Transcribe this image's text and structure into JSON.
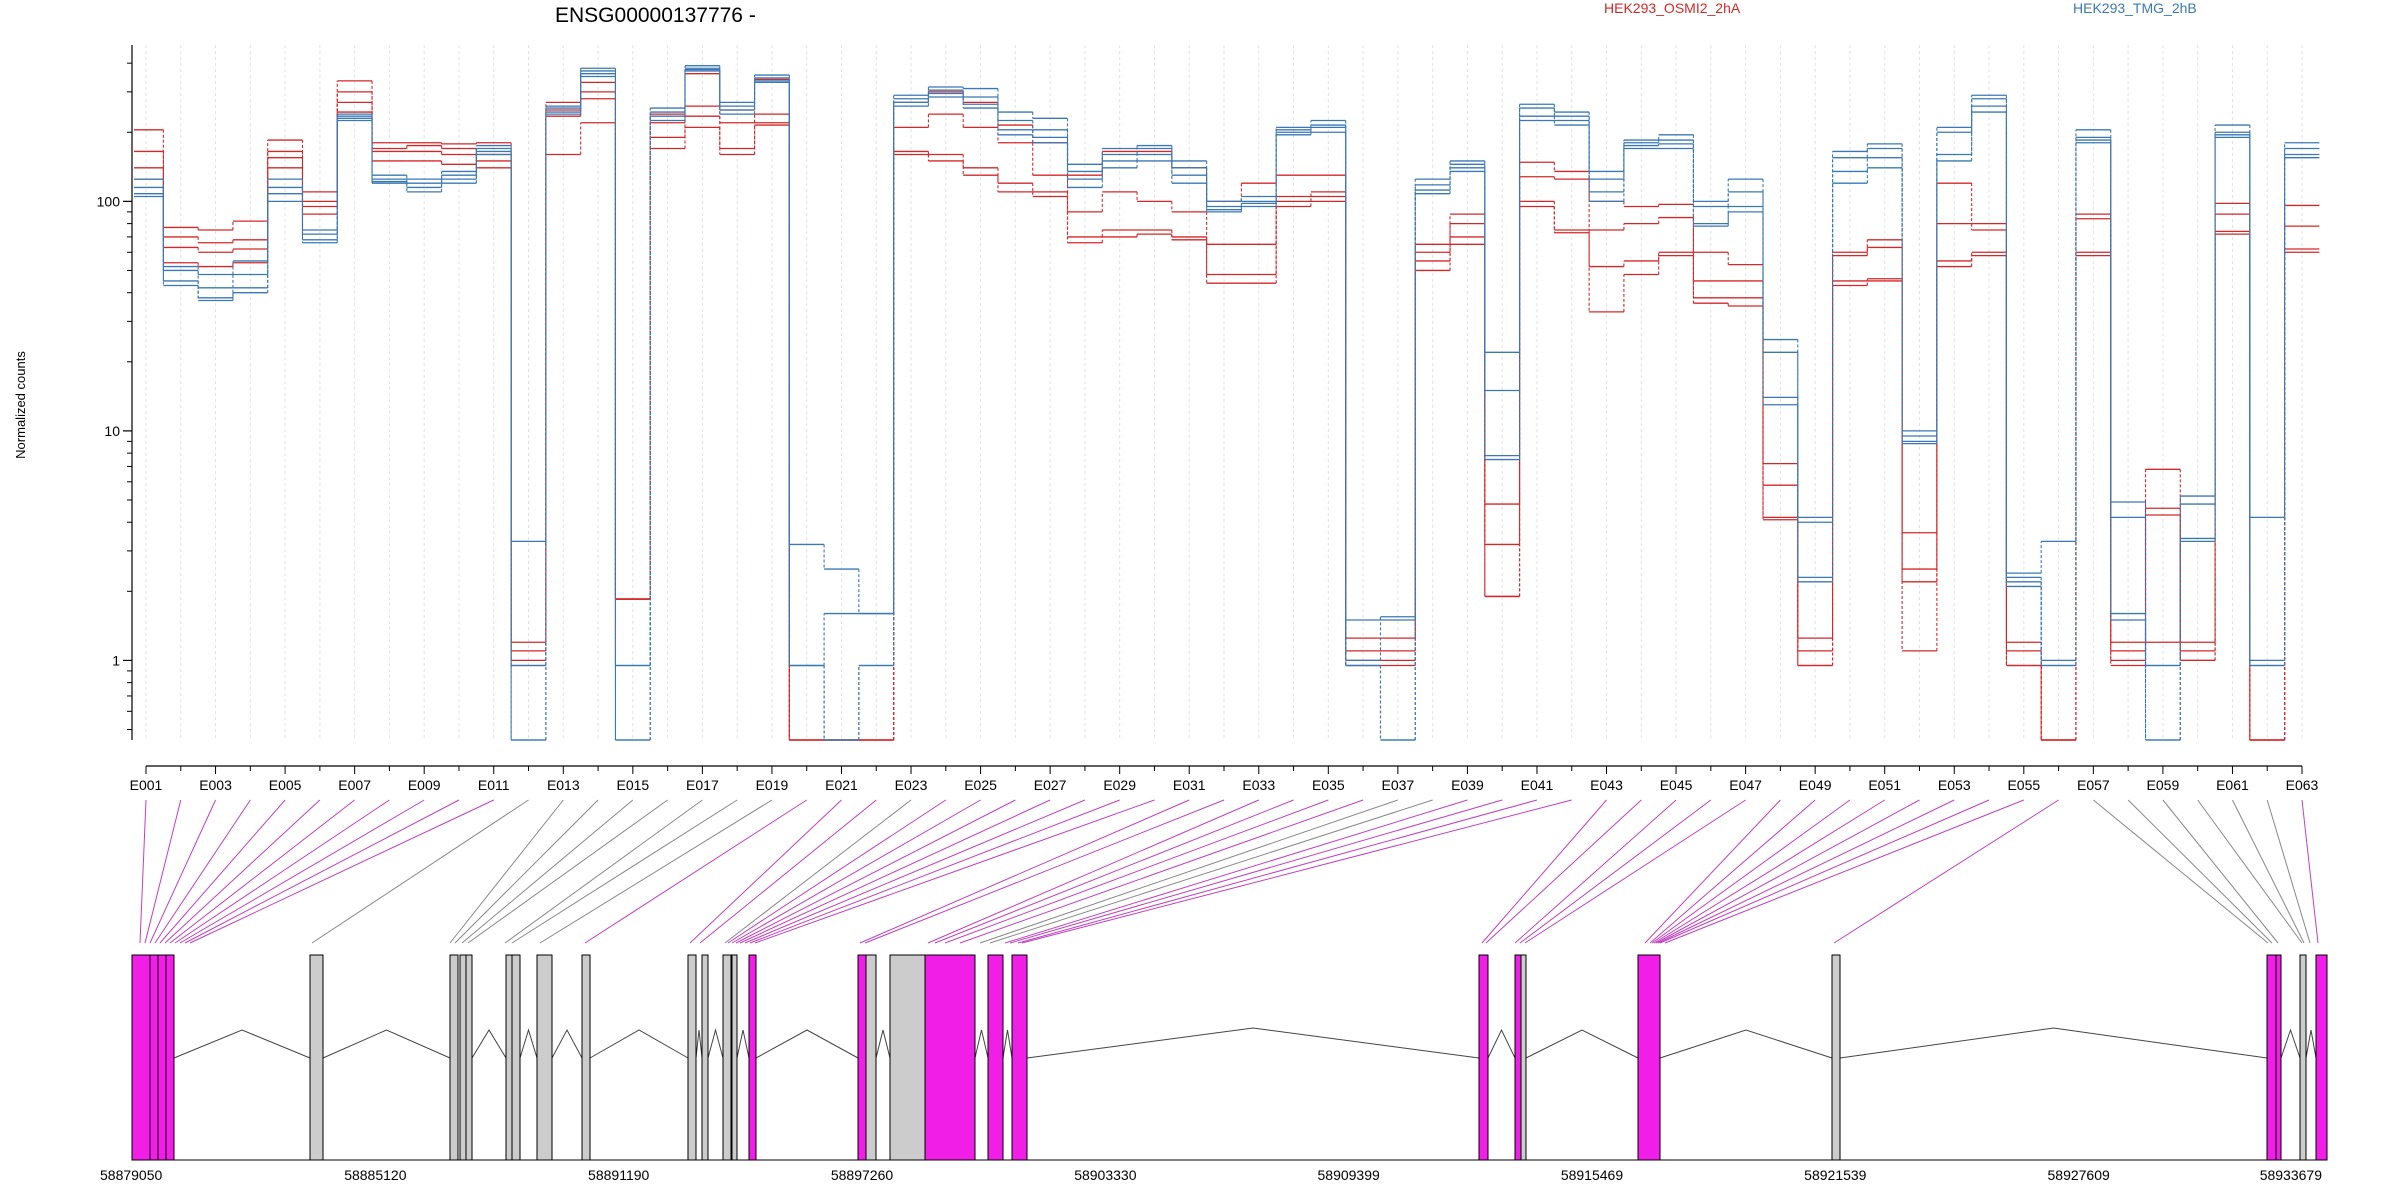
{
  "chart_data": {
    "type": "line",
    "title": "ENSG00000137776 -",
    "ylabel": "Normalized counts",
    "xlabel": "",
    "yscale": "log",
    "ylim": [
      0.45,
      480
    ],
    "y_ticks": [
      1,
      10,
      100
    ],
    "grid": "vertical",
    "legend": {
      "placement": "top-right",
      "entries": [
        "HEK293_OSMI2_2hA",
        "HEK293_TMG_2hB"
      ]
    },
    "categories": [
      "E001",
      "E002",
      "E003",
      "E004",
      "E005",
      "E006",
      "E007",
      "E008",
      "E009",
      "E010",
      "E011",
      "E012",
      "E013",
      "E014",
      "E015",
      "E016",
      "E017",
      "E018",
      "E019",
      "E020",
      "E021",
      "E022",
      "E023",
      "E024",
      "E025",
      "E026",
      "E027",
      "E028",
      "E029",
      "E030",
      "E031",
      "E032",
      "E033",
      "E034",
      "E035",
      "E036",
      "E037",
      "E038",
      "E039",
      "E040",
      "E041",
      "E042",
      "E043",
      "E044",
      "E045",
      "E046",
      "E047",
      "E048",
      "E049",
      "E050",
      "E051",
      "E052",
      "E053",
      "E054",
      "E055",
      "E056",
      "E057",
      "E058",
      "E059",
      "E060",
      "E061",
      "E062",
      "E063"
    ],
    "x_tick_labels": [
      "E001",
      "E003",
      "E005",
      "E007",
      "E009",
      "E011",
      "E013",
      "E015",
      "E017",
      "E019",
      "E021",
      "E023",
      "E025",
      "E027",
      "E029",
      "E031",
      "E033",
      "E035",
      "E037",
      "E039",
      "E041",
      "E043",
      "E045",
      "E047",
      "E049",
      "E051",
      "E053",
      "E055",
      "E057",
      "E059",
      "E061",
      "E063"
    ],
    "series": [
      {
        "name": "HEK293_OSMI2_2hA",
        "color": "#d62728",
        "values": [
          205,
          77,
          75,
          82,
          185,
          110,
          335,
          180,
          180,
          178,
          180,
          1.2,
          270,
          330,
          1.85,
          240,
          360,
          250,
          340,
          0.45,
          0.45,
          0.45,
          270,
          300,
          270,
          215,
          180,
          130,
          165,
          165,
          140,
          100,
          120,
          130,
          130,
          1.25,
          1.25,
          65,
          88,
          3.2,
          148,
          135,
          100,
          95,
          97,
          60,
          53,
          7.2,
          1.25,
          60,
          68,
          3.6,
          120,
          80,
          1.2,
          0.45,
          88,
          1.2,
          6.8,
          1.2,
          98,
          0.45,
          96
        ]
      },
      {
        "name": "HEK293_OSMI2_2hA",
        "color": "#d62728",
        "values": [
          165,
          70,
          66,
          68,
          165,
          100,
          300,
          170,
          175,
          170,
          160,
          1.1,
          250,
          300,
          1.85,
          220,
          260,
          220,
          240,
          0.45,
          0.45,
          0.45,
          210,
          240,
          210,
          180,
          130,
          90,
          110,
          100,
          90,
          65,
          65,
          105,
          110,
          1.1,
          1.1,
          60,
          80,
          4.8,
          128,
          125,
          75,
          80,
          85,
          45,
          45,
          5.8,
          1.1,
          58,
          63,
          2.5,
          80,
          75,
          1.1,
          0.45,
          84,
          1.1,
          4.6,
          1.1,
          88,
          0.45,
          78
        ]
      },
      {
        "name": "HEK293_OSMI2_2hA",
        "color": "#d62728",
        "values": [
          140,
          63,
          60,
          62,
          155,
          95,
          270,
          165,
          165,
          160,
          150,
          1.0,
          235,
          280,
          1.85,
          190,
          235,
          170,
          220,
          0.45,
          0.45,
          0.45,
          165,
          160,
          140,
          120,
          110,
          70,
          75,
          75,
          70,
          48,
          48,
          100,
          105,
          1.0,
          1.0,
          55,
          70,
          1.9,
          100,
          75,
          52,
          55,
          60,
          38,
          38,
          4.2,
          0.95,
          45,
          46,
          2.2,
          55,
          60,
          0.95,
          0.45,
          60,
          1.0,
          4.3,
          1.0,
          74,
          0.45,
          62
        ]
      },
      {
        "name": "HEK293_OSMI2_2hA",
        "color": "#d62728",
        "values": [
          125,
          54,
          52,
          54,
          140,
          88,
          245,
          150,
          150,
          145,
          140,
          0.95,
          160,
          220,
          1.85,
          170,
          210,
          160,
          215,
          0.45,
          0.45,
          0.45,
          160,
          150,
          130,
          110,
          105,
          66,
          70,
          72,
          68,
          44,
          44,
          95,
          100,
          0.95,
          0.95,
          50,
          65,
          1.9,
          95,
          73,
          33,
          48,
          58,
          36,
          35,
          4.1,
          0.95,
          43,
          45,
          1.1,
          52,
          58,
          0.95,
          0.45,
          58,
          0.95,
          1.2,
          1.0,
          72,
          0.45,
          60
        ]
      },
      {
        "name": "HEK293_TMG_2hB",
        "color": "#3a78b5",
        "values": [
          125,
          52,
          48,
          55,
          125,
          75,
          240,
          130,
          125,
          135,
          175,
          3.3,
          260,
          380,
          0.95,
          255,
          390,
          270,
          355,
          3.2,
          2.5,
          1.6,
          290,
          315,
          310,
          245,
          230,
          145,
          170,
          175,
          150,
          100,
          105,
          210,
          225,
          1.5,
          1.55,
          125,
          150,
          22,
          265,
          245,
          135,
          185,
          195,
          100,
          125,
          25,
          4.2,
          165,
          178,
          10,
          210,
          290,
          2.4,
          3.3,
          205,
          4.9,
          0.95,
          5.2,
          215,
          4.2,
          180
        ]
      },
      {
        "name": "HEK293_TMG_2hB",
        "color": "#3a78b5",
        "values": [
          115,
          50,
          42,
          48,
          115,
          72,
          235,
          125,
          120,
          130,
          170,
          0.95,
          255,
          370,
          0.95,
          245,
          380,
          260,
          345,
          0.95,
          1.6,
          1.6,
          280,
          305,
          285,
          225,
          205,
          135,
          160,
          170,
          140,
          95,
          100,
          205,
          215,
          1.0,
          1.5,
          118,
          145,
          15,
          255,
          235,
          125,
          180,
          185,
          95,
          110,
          22,
          4.0,
          155,
          170,
          9.5,
          200,
          280,
          2.3,
          1.0,
          190,
          4.2,
          0.95,
          4.8,
          200,
          1.0,
          170
        ]
      },
      {
        "name": "HEK293_TMG_2hB",
        "color": "#3a78b5",
        "values": [
          108,
          45,
          38,
          42,
          108,
          68,
          230,
          122,
          115,
          125,
          165,
          0.45,
          245,
          360,
          0.45,
          235,
          375,
          250,
          335,
          0.95,
          0.45,
          0.95,
          270,
          295,
          265,
          205,
          190,
          125,
          150,
          160,
          130,
          92,
          98,
          200,
          210,
          0.95,
          0.45,
          112,
          140,
          7.8,
          235,
          225,
          110,
          175,
          178,
          80,
          95,
          14,
          2.3,
          135,
          155,
          9.0,
          160,
          260,
          2.2,
          0.95,
          185,
          1.6,
          0.45,
          3.4,
          195,
          0.95,
          160
        ]
      },
      {
        "name": "HEK293_TMG_2hB",
        "color": "#3a78b5",
        "values": [
          105,
          43,
          37,
          40,
          100,
          66,
          225,
          120,
          110,
          120,
          160,
          0.45,
          240,
          350,
          0.45,
          225,
          370,
          240,
          330,
          0.95,
          0.45,
          0.95,
          260,
          285,
          255,
          195,
          180,
          115,
          140,
          150,
          120,
          90,
          95,
          195,
          200,
          0.95,
          0.45,
          108,
          135,
          7.5,
          225,
          215,
          100,
          170,
          170,
          78,
          90,
          13,
          2.2,
          120,
          140,
          8.8,
          150,
          245,
          2.1,
          0.95,
          180,
          1.5,
          0.45,
          3.3,
          190,
          0.95,
          155
        ]
      }
    ],
    "exon_lines_highlighted": [
      "E001",
      "E002",
      "E003",
      "E004",
      "E005",
      "E006",
      "E007",
      "E008",
      "E009",
      "E010",
      "E011",
      "E020",
      "E021",
      "E022",
      "E024",
      "E025",
      "E026",
      "E027",
      "E028",
      "E029",
      "E030",
      "E031",
      "E032",
      "E033",
      "E034",
      "E035",
      "E036",
      "E039",
      "E040",
      "E041",
      "E042",
      "E043",
      "E044",
      "E045",
      "E046",
      "E047",
      "E048",
      "E049",
      "E050",
      "E051",
      "E052",
      "E053",
      "E054",
      "E055",
      "E056",
      "E063"
    ],
    "gene_model": {
      "coordinate_labels": [
        "58879050",
        "58885120",
        "58891190",
        "58897260",
        "58903330",
        "58909399",
        "58915469",
        "58921539",
        "58927609",
        "58933679"
      ],
      "coord_range": [
        58879050,
        58933679
      ]
    }
  }
}
